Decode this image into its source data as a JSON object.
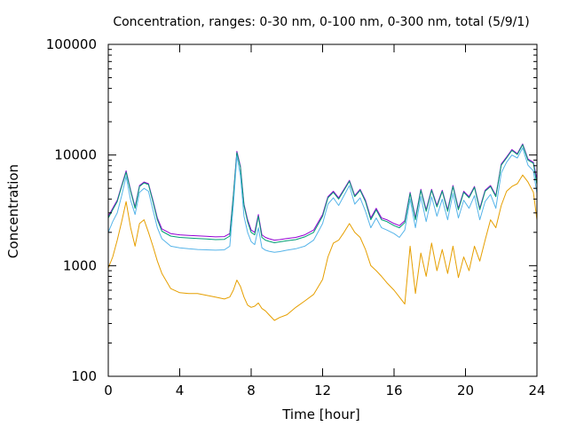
{
  "chart_data": {
    "type": "line",
    "title": "Concentration, ranges: 0-30 nm, 0-100 nm, 0-300 nm, total (5/9/1)",
    "xlabel": "Time [hour]",
    "ylabel": "Concentration",
    "xlim": [
      0,
      24
    ],
    "ylim": [
      100,
      100000
    ],
    "yscale": "log",
    "grid": false,
    "legend": "none",
    "x_ticks": [
      0,
      4,
      8,
      12,
      16,
      20,
      24
    ],
    "x_tick_labels": [
      "0",
      "4",
      "8",
      "12",
      "16",
      "20",
      "24"
    ],
    "y_ticks": [
      100,
      1000,
      10000,
      100000
    ],
    "y_tick_labels": [
      "100",
      "1000",
      "10000",
      "100000"
    ],
    "x": [
      0,
      0.25,
      0.5,
      0.75,
      1,
      1.25,
      1.5,
      1.75,
      2,
      2.25,
      2.5,
      2.75,
      3,
      3.5,
      4,
      4.5,
      5,
      5.5,
      6,
      6.5,
      6.8,
      7,
      7.2,
      7.4,
      7.6,
      7.8,
      8,
      8.2,
      8.4,
      8.6,
      8.8,
      9,
      9.3,
      9.6,
      10,
      10.5,
      11,
      11.5,
      12,
      12.3,
      12.6,
      12.9,
      13.2,
      13.5,
      13.8,
      14.1,
      14.4,
      14.7,
      15,
      15.3,
      15.6,
      16,
      16.3,
      16.6,
      16.9,
      17.2,
      17.5,
      17.8,
      18.1,
      18.4,
      18.7,
      19,
      19.3,
      19.6,
      19.9,
      20.2,
      20.5,
      20.8,
      21.1,
      21.4,
      21.7,
      22,
      22.3,
      22.6,
      22.9,
      23.2,
      23.5,
      23.8,
      24
    ],
    "series": [
      {
        "color": "#9400d3",
        "values": [
          2800,
          3300,
          3900,
          5300,
          7200,
          4800,
          3400,
          5300,
          5700,
          5500,
          3900,
          2700,
          2150,
          1950,
          1900,
          1880,
          1860,
          1840,
          1820,
          1830,
          1950,
          4300,
          10800,
          7900,
          3600,
          2600,
          2100,
          2000,
          2900,
          1900,
          1800,
          1750,
          1700,
          1720,
          1760,
          1800,
          1900,
          2100,
          2900,
          4200,
          4700,
          4100,
          4900,
          5900,
          4300,
          4900,
          3900,
          2700,
          3300,
          2700,
          2600,
          2400,
          2300,
          2550,
          4600,
          2700,
          4900,
          3200,
          4900,
          3500,
          4800,
          3200,
          5300,
          3300,
          4700,
          4200,
          5200,
          3300,
          4800,
          5300,
          4300,
          8300,
          9600,
          11200,
          10300,
          12600,
          9200,
          8600,
          6000
        ]
      },
      {
        "color": "#009e73",
        "values": [
          2700,
          3200,
          3800,
          5200,
          7000,
          4700,
          3300,
          5200,
          5600,
          5400,
          3800,
          2600,
          2050,
          1850,
          1800,
          1780,
          1760,
          1740,
          1720,
          1730,
          1850,
          4200,
          10500,
          7700,
          3500,
          2500,
          2000,
          1900,
          2800,
          1800,
          1700,
          1660,
          1610,
          1640,
          1680,
          1720,
          1820,
          2000,
          2800,
          4100,
          4600,
          4000,
          4800,
          5800,
          4200,
          4800,
          3800,
          2600,
          3200,
          2600,
          2500,
          2300,
          2200,
          2450,
          4500,
          2600,
          4800,
          3100,
          4800,
          3400,
          4700,
          3100,
          5200,
          3200,
          4600,
          4100,
          5100,
          3200,
          4700,
          5200,
          4200,
          8100,
          9400,
          11000,
          10100,
          12400,
          9000,
          8400,
          5400
        ]
      },
      {
        "color": "#56b4e9",
        "values": [
          2000,
          2500,
          3000,
          4300,
          6400,
          3900,
          2900,
          4600,
          5000,
          4700,
          3200,
          2200,
          1750,
          1500,
          1450,
          1420,
          1400,
          1390,
          1380,
          1390,
          1500,
          3500,
          9800,
          6500,
          2800,
          2000,
          1650,
          1550,
          2200,
          1450,
          1380,
          1350,
          1320,
          1340,
          1380,
          1420,
          1500,
          1700,
          2400,
          3600,
          4100,
          3500,
          4300,
          5300,
          3600,
          4100,
          3100,
          2200,
          2700,
          2200,
          2100,
          1950,
          1800,
          2100,
          4000,
          2200,
          4200,
          2500,
          4200,
          2800,
          4000,
          2600,
          4500,
          2700,
          3900,
          3300,
          4300,
          2600,
          3800,
          4400,
          3300,
          6900,
          8600,
          10000,
          9400,
          11600,
          8100,
          7200,
          4500
        ]
      },
      {
        "color": "#e69f00",
        "values": [
          950,
          1200,
          1700,
          2500,
          3800,
          2200,
          1500,
          2400,
          2600,
          2000,
          1500,
          1100,
          850,
          620,
          570,
          560,
          560,
          540,
          520,
          500,
          520,
          600,
          740,
          650,
          520,
          440,
          420,
          430,
          460,
          410,
          390,
          360,
          320,
          340,
          360,
          420,
          480,
          550,
          750,
          1200,
          1600,
          1700,
          2000,
          2400,
          2000,
          1800,
          1400,
          1000,
          900,
          800,
          700,
          600,
          520,
          450,
          1500,
          560,
          1300,
          800,
          1600,
          900,
          1400,
          850,
          1500,
          780,
          1200,
          900,
          1500,
          1100,
          1700,
          2600,
          2200,
          3500,
          4700,
          5200,
          5500,
          6600,
          5700,
          4600,
          2600
        ]
      }
    ]
  }
}
